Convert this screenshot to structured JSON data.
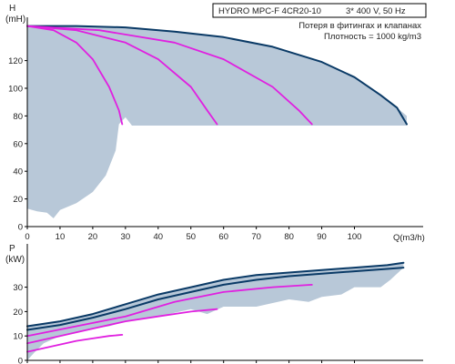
{
  "header": {
    "product": "HYDRO MPC-F 4CR20-10",
    "supply": "3* 400 V, 50 Hz",
    "note_line1": "Потеря в фитингах и клапанах",
    "note_line2": "Плотность = 1000 kg/m3"
  },
  "colors": {
    "area_fill": "#b8c8d8",
    "max_curve": "#0a3a66",
    "pump_curves": "#e020e0",
    "axis": "#000000"
  },
  "chart_data": [
    {
      "type": "line",
      "name": "head",
      "ylabel_line1": "H",
      "ylabel_line2": "(mH)",
      "xlabel": "Q(m3/h)",
      "xlim": [
        0,
        121
      ],
      "ylim": [
        0,
        150
      ],
      "xticks": [
        0,
        10,
        20,
        30,
        40,
        50,
        60,
        70,
        80,
        90,
        100
      ],
      "yticks": [
        0,
        20,
        40,
        60,
        80,
        100,
        120
      ],
      "grid": false,
      "operating_area": [
        [
          0,
          145
        ],
        [
          15,
          145
        ],
        [
          30,
          144
        ],
        [
          45,
          141
        ],
        [
          60,
          137
        ],
        [
          75,
          130
        ],
        [
          90,
          119
        ],
        [
          100,
          108
        ],
        [
          108,
          95
        ],
        [
          113,
          86
        ],
        [
          116,
          80
        ],
        [
          116,
          73
        ],
        [
          32,
          73
        ],
        [
          30,
          79
        ],
        [
          28,
          74
        ],
        [
          27,
          55
        ],
        [
          24,
          37
        ],
        [
          20,
          25
        ],
        [
          15,
          17
        ],
        [
          10,
          12
        ],
        [
          8,
          6
        ],
        [
          6,
          10
        ],
        [
          3,
          11
        ],
        [
          0,
          13
        ]
      ],
      "series": [
        {
          "style": "max",
          "x": [
            0,
            15,
            30,
            45,
            60,
            75,
            90,
            100,
            108,
            113,
            116
          ],
          "y": [
            145,
            145,
            144,
            141,
            137,
            130,
            119,
            108,
            95,
            86,
            74
          ]
        },
        {
          "style": "pump",
          "x": [
            0,
            8,
            15,
            20,
            25,
            28,
            29
          ],
          "y": [
            145,
            142,
            133,
            121,
            101,
            84,
            74
          ]
        },
        {
          "style": "pump",
          "x": [
            0,
            15,
            30,
            40,
            50,
            55,
            58
          ],
          "y": [
            145,
            142,
            133,
            121,
            101,
            84,
            74
          ]
        },
        {
          "style": "pump",
          "x": [
            0,
            22,
            45,
            60,
            75,
            83,
            87
          ],
          "y": [
            145,
            142,
            133,
            121,
            101,
            84,
            74
          ]
        }
      ]
    },
    {
      "type": "line",
      "name": "power",
      "ylabel_line1": "P",
      "ylabel_line2": "(kW)",
      "xlim": [
        0,
        121
      ],
      "ylim": [
        0,
        47
      ],
      "yticks": [
        0,
        10,
        20,
        30
      ],
      "grid": false,
      "operating_area": [
        [
          0,
          14
        ],
        [
          10,
          16
        ],
        [
          20,
          19
        ],
        [
          30,
          23
        ],
        [
          40,
          27
        ],
        [
          50,
          30
        ],
        [
          60,
          33
        ],
        [
          70,
          35
        ],
        [
          80,
          36
        ],
        [
          90,
          37
        ],
        [
          100,
          38
        ],
        [
          110,
          39
        ],
        [
          115,
          40
        ],
        [
          115,
          38
        ],
        [
          111,
          33
        ],
        [
          108,
          30
        ],
        [
          100,
          30
        ],
        [
          96,
          27
        ],
        [
          90,
          26
        ],
        [
          86,
          24
        ],
        [
          80,
          25
        ],
        [
          70,
          22
        ],
        [
          60,
          22
        ],
        [
          55,
          19
        ],
        [
          50,
          21
        ],
        [
          40,
          18
        ],
        [
          30,
          16
        ],
        [
          25,
          14
        ],
        [
          20,
          13
        ],
        [
          10,
          10
        ],
        [
          5,
          7
        ],
        [
          2,
          3
        ],
        [
          0,
          0
        ]
      ],
      "series": [
        {
          "style": "max",
          "x": [
            0,
            10,
            20,
            30,
            40,
            50,
            60,
            70,
            80,
            90,
            100,
            110,
            115
          ],
          "y": [
            14,
            16,
            19,
            23,
            27,
            30,
            33,
            35,
            36,
            37,
            38,
            39,
            40
          ]
        },
        {
          "style": "max",
          "x": [
            0,
            10,
            20,
            30,
            40,
            50,
            60,
            70,
            80,
            90,
            100,
            110,
            115
          ],
          "y": [
            12.5,
            14.5,
            17.5,
            21,
            25,
            28,
            31,
            33,
            34.5,
            35.5,
            36.5,
            37.5,
            38
          ]
        },
        {
          "style": "pump",
          "x": [
            0,
            15,
            30,
            45,
            60,
            75,
            87
          ],
          "y": [
            10,
            14,
            18,
            24,
            28,
            30,
            31
          ]
        },
        {
          "style": "pump",
          "x": [
            0,
            10,
            20,
            30,
            40,
            50,
            58
          ],
          "y": [
            7,
            10,
            13,
            16,
            18,
            20,
            21
          ]
        },
        {
          "style": "pump",
          "x": [
            0,
            5,
            10,
            15,
            20,
            25,
            29
          ],
          "y": [
            3.5,
            5,
            6.5,
            8,
            9,
            10,
            10.5
          ]
        }
      ]
    }
  ]
}
